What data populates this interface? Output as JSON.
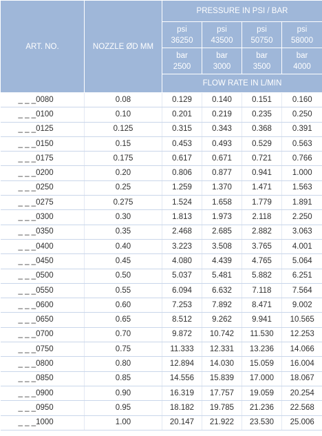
{
  "header": {
    "art_no": "ART. NO.",
    "nozzle": "NOZZLE ØD MM",
    "pressure": "PRESSURE IN PSI / BAR",
    "flow_rate": "FLOW RATE IN L/MIN",
    "psi_unit": "psi",
    "bar_unit": "bar",
    "psi_values": [
      "36250",
      "43500",
      "50750",
      "58000"
    ],
    "bar_values": [
      "2500",
      "3000",
      "3500",
      "4000"
    ]
  },
  "rows": [
    {
      "art": "_ _ _0080",
      "nozzle": "0.08",
      "v": [
        "0.129",
        "0.140",
        "0.151",
        "0.160"
      ]
    },
    {
      "art": "_ _ _0100",
      "nozzle": "0.10",
      "v": [
        "0.201",
        "0.219",
        "0.235",
        "0.250"
      ]
    },
    {
      "art": "_ _ _0125",
      "nozzle": "0.125",
      "v": [
        "0.315",
        "0.343",
        "0.368",
        "0.391"
      ]
    },
    {
      "art": "_ _ _0150",
      "nozzle": "0.15",
      "v": [
        "0.453",
        "0.493",
        "0.529",
        "0.563"
      ]
    },
    {
      "art": "_ _ _0175",
      "nozzle": "0.175",
      "v": [
        "0.617",
        "0.671",
        "0.721",
        "0.766"
      ]
    },
    {
      "art": "_ _ _0200",
      "nozzle": "0.20",
      "v": [
        "0.806",
        "0.877",
        "0.941",
        "1.000"
      ]
    },
    {
      "art": "_ _ _0250",
      "nozzle": "0.25",
      "v": [
        "1.259",
        "1.370",
        "1.471",
        "1.563"
      ]
    },
    {
      "art": "_ _ _0275",
      "nozzle": "0.275",
      "v": [
        "1.524",
        "1.658",
        "1.779",
        "1.891"
      ]
    },
    {
      "art": "_ _ _0300",
      "nozzle": "0.30",
      "v": [
        "1.813",
        "1.973",
        "2.118",
        "2.250"
      ]
    },
    {
      "art": "_ _ _0350",
      "nozzle": "0.35",
      "v": [
        "2.468",
        "2.685",
        "2.882",
        "3.063"
      ]
    },
    {
      "art": "_ _ _0400",
      "nozzle": "0.40",
      "v": [
        "3.223",
        "3.508",
        "3.765",
        "4.001"
      ]
    },
    {
      "art": "_ _ _0450",
      "nozzle": "0.45",
      "v": [
        "4.080",
        "4.439",
        "4.765",
        "5.064"
      ]
    },
    {
      "art": "_ _ _0500",
      "nozzle": "0.50",
      "v": [
        "5.037",
        "5.481",
        "5.882",
        "6.251"
      ]
    },
    {
      "art": "_ _ _0550",
      "nozzle": "0.55",
      "v": [
        "6.094",
        "6.632",
        "7.118",
        "7.564"
      ]
    },
    {
      "art": "_ _ _0600",
      "nozzle": "0.60",
      "v": [
        "7.253",
        "7.892",
        "8.471",
        "9.002"
      ]
    },
    {
      "art": "_ _ _0650",
      "nozzle": "0.65",
      "v": [
        "8.512",
        "9.262",
        "9.941",
        "10.565"
      ]
    },
    {
      "art": "_ _ _0700",
      "nozzle": "0.70",
      "v": [
        "9.872",
        "10.742",
        "11.530",
        "12.253"
      ]
    },
    {
      "art": "_ _ _0750",
      "nozzle": "0.75",
      "v": [
        "11.333",
        "12.331",
        "13.236",
        "14.066"
      ]
    },
    {
      "art": "_ _ _0800",
      "nozzle": "0.80",
      "v": [
        "12.894",
        "14.030",
        "15.059",
        "16.004"
      ]
    },
    {
      "art": "_ _ _0850",
      "nozzle": "0.85",
      "v": [
        "14.556",
        "15.839",
        "17.000",
        "18.067"
      ]
    },
    {
      "art": "_ _ _0900",
      "nozzle": "0.90",
      "v": [
        "16.319",
        "17.757",
        "19.059",
        "20.254"
      ]
    },
    {
      "art": "_ _ _0950",
      "nozzle": "0.95",
      "v": [
        "18.182",
        "19.785",
        "21.236",
        "22.568"
      ]
    },
    {
      "art": "_ _ _1000",
      "nozzle": "1.00",
      "v": [
        "20.147",
        "21.922",
        "23.530",
        "25.006"
      ]
    }
  ]
}
